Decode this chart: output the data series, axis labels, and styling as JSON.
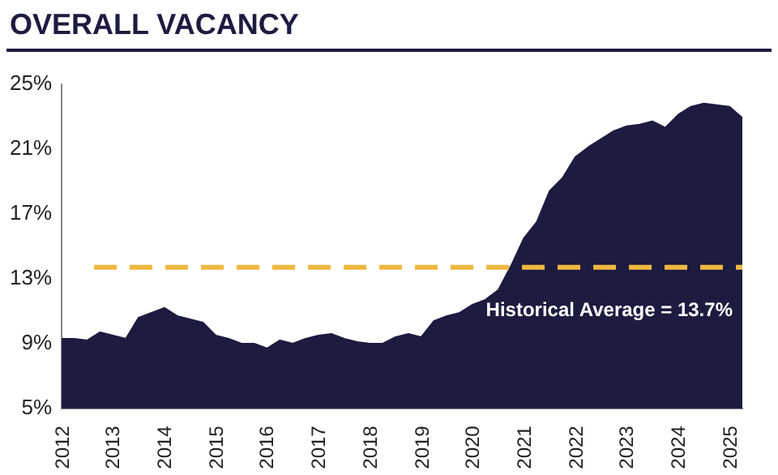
{
  "chart_data": {
    "type": "area",
    "title": "OVERALL VACANCY",
    "x": [
      "2012-01",
      "2012-04",
      "2012-07",
      "2012-10",
      "2013-01",
      "2013-04",
      "2013-07",
      "2013-10",
      "2014-01",
      "2014-04",
      "2014-07",
      "2014-10",
      "2015-01",
      "2015-04",
      "2015-07",
      "2015-10",
      "2016-01",
      "2016-04",
      "2016-07",
      "2016-10",
      "2017-01",
      "2017-04",
      "2017-07",
      "2017-10",
      "2018-01",
      "2018-04",
      "2018-07",
      "2018-10",
      "2019-01",
      "2019-04",
      "2019-07",
      "2019-10",
      "2020-01",
      "2020-04",
      "2020-07",
      "2020-10",
      "2021-01",
      "2021-04",
      "2021-07",
      "2021-10",
      "2022-01",
      "2022-04",
      "2022-07",
      "2022-10",
      "2023-01",
      "2023-04",
      "2023-07",
      "2023-10",
      "2024-01",
      "2024-04",
      "2024-07",
      "2024-10",
      "2025-01",
      "2025-04"
    ],
    "series": [
      {
        "color": "#1e1b40",
        "values": [
          9.3,
          9.3,
          9.2,
          9.7,
          9.5,
          9.3,
          10.6,
          10.9,
          11.2,
          10.7,
          10.5,
          10.3,
          9.5,
          9.3,
          9.0,
          9.0,
          8.7,
          9.2,
          9.0,
          9.3,
          9.5,
          9.6,
          9.3,
          9.1,
          9.0,
          9.0,
          9.4,
          9.6,
          9.4,
          10.4,
          10.7,
          10.9,
          11.4,
          11.7,
          12.3,
          13.8,
          15.5,
          16.5,
          18.4,
          19.2,
          20.5,
          21.1,
          21.6,
          22.1,
          22.4,
          22.5,
          22.7,
          22.3,
          23.1,
          23.6,
          23.8,
          23.7,
          23.6,
          22.9
        ]
      }
    ],
    "xlim": [
      "2012-01",
      "2025-04"
    ],
    "xticks": [
      "2012",
      "2013",
      "2014",
      "2015",
      "2016",
      "2017",
      "2018",
      "2019",
      "2020",
      "2021",
      "2022",
      "2023",
      "2024",
      "2025"
    ],
    "ylim": [
      5,
      25
    ],
    "yticks": [
      {
        "value": 5,
        "label": "5%"
      },
      {
        "value": 9,
        "label": "9%"
      },
      {
        "value": 13,
        "label": "13%"
      },
      {
        "value": 17,
        "label": "17%"
      },
      {
        "value": 21,
        "label": "21%"
      },
      {
        "value": 25,
        "label": "25%"
      }
    ],
    "ref_lines": [
      {
        "axis": "y",
        "value": 13.7,
        "label": "Historical Average = 13.7%",
        "color": "#f0b840",
        "line_style": "dashed"
      }
    ],
    "grid": false,
    "legend": false
  }
}
